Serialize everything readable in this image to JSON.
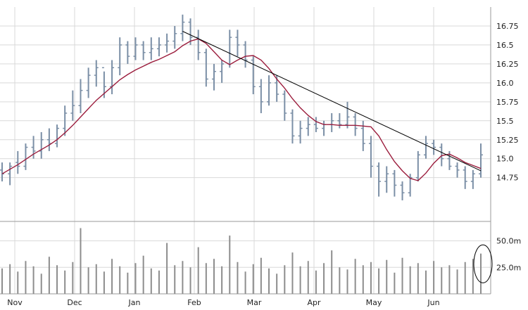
{
  "colors": {
    "background": "#ffffff",
    "grid": "#d9d9d9",
    "axis": "#9a9a9a",
    "text": "#222222",
    "ohlc": "#7b8fa6",
    "moving_average": "#9b1c3c",
    "trendline": "#000000",
    "volume": "#8d8d8d",
    "annotation": "#000000"
  },
  "chart_data": [
    {
      "type": "line",
      "title": "",
      "xlabel": "",
      "ylabel": "",
      "x_labels": [
        "Nov",
        "Dec",
        "Jan",
        "Feb",
        "Mar",
        "Apr",
        "May",
        "Jun"
      ],
      "yticks": [
        14.75,
        15.0,
        15.25,
        15.5,
        15.75,
        16.0,
        16.25,
        16.5,
        16.75
      ],
      "ytick_labels": [
        "14.75",
        "15.0",
        "15.25",
        "15.5",
        "15.75",
        "16.0",
        "16.25",
        "16.5",
        "16.75"
      ],
      "ylim": [
        14.2,
        17.0
      ],
      "grid": true,
      "series": [
        {
          "kind": "ohlc",
          "values": [
            [
              14.85,
              14.95,
              14.7,
              14.8
            ],
            [
              14.8,
              14.95,
              14.65,
              14.9
            ],
            [
              14.95,
              15.1,
              14.8,
              14.9
            ],
            [
              14.9,
              15.2,
              14.85,
              15.15
            ],
            [
              15.15,
              15.3,
              15.0,
              15.1
            ],
            [
              15.1,
              15.35,
              15.0,
              15.25
            ],
            [
              15.25,
              15.4,
              15.1,
              15.2
            ],
            [
              15.2,
              15.45,
              15.15,
              15.4
            ],
            [
              15.4,
              15.7,
              15.3,
              15.6
            ],
            [
              15.6,
              15.9,
              15.5,
              15.7
            ],
            [
              15.7,
              16.05,
              15.6,
              15.9
            ],
            [
              15.9,
              16.2,
              15.8,
              16.1
            ],
            [
              16.1,
              16.3,
              15.95,
              16.2
            ],
            [
              16.2,
              16.15,
              15.8,
              15.95
            ],
            [
              15.95,
              16.3,
              15.85,
              16.2
            ],
            [
              16.2,
              16.6,
              16.1,
              16.5
            ],
            [
              16.5,
              16.55,
              16.25,
              16.35
            ],
            [
              16.35,
              16.6,
              16.3,
              16.5
            ],
            [
              16.5,
              16.55,
              16.3,
              16.4
            ],
            [
              16.4,
              16.6,
              16.3,
              16.45
            ],
            [
              16.45,
              16.6,
              16.35,
              16.5
            ],
            [
              16.5,
              16.65,
              16.4,
              16.55
            ],
            [
              16.55,
              16.75,
              16.45,
              16.65
            ],
            [
              16.65,
              16.9,
              16.55,
              16.8
            ],
            [
              16.8,
              16.85,
              16.5,
              16.6
            ],
            [
              16.6,
              16.7,
              16.3,
              16.4
            ],
            [
              16.4,
              16.45,
              15.95,
              16.05
            ],
            [
              16.05,
              16.25,
              15.9,
              16.15
            ],
            [
              16.15,
              16.3,
              16.0,
              16.25
            ],
            [
              16.25,
              16.7,
              16.2,
              16.6
            ],
            [
              16.6,
              16.7,
              16.35,
              16.5
            ],
            [
              16.5,
              16.55,
              16.2,
              16.3
            ],
            [
              16.3,
              16.35,
              15.85,
              15.95
            ],
            [
              15.95,
              16.05,
              15.6,
              15.75
            ],
            [
              15.75,
              16.1,
              15.7,
              16.0
            ],
            [
              16.0,
              16.1,
              15.75,
              15.85
            ],
            [
              15.85,
              15.9,
              15.5,
              15.6
            ],
            [
              15.6,
              15.65,
              15.2,
              15.3
            ],
            [
              15.3,
              15.5,
              15.2,
              15.4
            ],
            [
              15.4,
              15.55,
              15.3,
              15.45
            ],
            [
              15.45,
              15.55,
              15.35,
              15.4
            ],
            [
              15.4,
              15.5,
              15.3,
              15.45
            ],
            [
              15.45,
              15.6,
              15.35,
              15.5
            ],
            [
              15.5,
              15.6,
              15.4,
              15.45
            ],
            [
              15.45,
              15.75,
              15.4,
              15.55
            ],
            [
              15.55,
              15.6,
              15.3,
              15.4
            ],
            [
              15.4,
              15.5,
              15.1,
              15.2
            ],
            [
              15.2,
              15.3,
              14.75,
              14.9
            ],
            [
              14.9,
              14.95,
              14.5,
              14.7
            ],
            [
              14.7,
              14.9,
              14.55,
              14.8
            ],
            [
              14.8,
              14.85,
              14.5,
              14.65
            ],
            [
              14.65,
              14.7,
              14.45,
              14.55
            ],
            [
              14.55,
              14.8,
              14.5,
              14.75
            ],
            [
              14.75,
              15.1,
              14.7,
              15.05
            ],
            [
              15.05,
              15.3,
              15.0,
              15.2
            ],
            [
              15.2,
              15.25,
              15.05,
              15.15
            ],
            [
              15.15,
              15.2,
              14.9,
              15.0
            ],
            [
              15.0,
              15.1,
              14.85,
              14.9
            ],
            [
              14.9,
              14.95,
              14.75,
              14.85
            ],
            [
              14.85,
              14.9,
              14.6,
              14.7
            ],
            [
              14.7,
              14.85,
              14.6,
              14.8
            ],
            [
              14.8,
              15.2,
              14.75,
              15.05
            ]
          ]
        },
        {
          "name": "",
          "kind": "moving_average",
          "values": [
            14.8,
            14.86,
            14.92,
            14.99,
            15.06,
            15.12,
            15.18,
            15.25,
            15.34,
            15.44,
            15.55,
            15.66,
            15.77,
            15.86,
            15.95,
            16.04,
            16.11,
            16.17,
            16.22,
            16.27,
            16.31,
            16.36,
            16.41,
            16.49,
            16.55,
            16.58,
            16.52,
            16.41,
            16.3,
            16.24,
            16.3,
            16.35,
            16.36,
            16.3,
            16.19,
            16.05,
            15.93,
            15.79,
            15.67,
            15.57,
            15.49,
            15.45,
            15.45,
            15.44,
            15.44,
            15.44,
            15.43,
            15.42,
            15.3,
            15.12,
            14.96,
            14.84,
            14.74,
            14.71,
            14.81,
            14.94,
            15.04,
            15.06,
            15.01,
            14.95,
            14.91,
            14.87
          ]
        },
        {
          "kind": "trendline",
          "values": [
            [
              23,
              16.68
            ],
            [
              61,
              14.84
            ]
          ]
        }
      ]
    },
    {
      "type": "bar",
      "title": "",
      "xlabel": "",
      "ylabel": "",
      "yticks": [
        25,
        50
      ],
      "ytick_labels": [
        "25.0m",
        "50.0m"
      ],
      "ylim": [
        0,
        65
      ],
      "series": [
        {
          "name": "",
          "values": [
            24,
            28,
            21,
            31,
            26,
            19,
            35,
            27,
            22,
            30,
            62,
            25,
            28,
            21,
            33,
            26,
            20,
            29,
            36,
            24,
            22,
            48,
            27,
            31,
            25,
            44,
            29,
            33,
            26,
            55,
            30,
            21,
            28,
            34,
            24,
            19,
            27,
            39,
            26,
            31,
            22,
            29,
            41,
            25,
            23,
            33,
            27,
            30,
            24,
            32,
            20,
            34,
            26,
            29,
            22,
            31,
            25,
            27,
            23,
            30,
            33,
            38
          ]
        }
      ]
    }
  ]
}
